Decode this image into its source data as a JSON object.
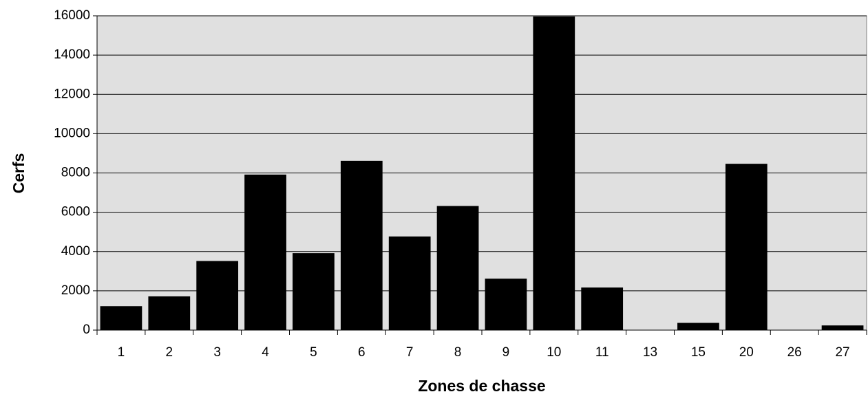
{
  "colors": {
    "plot_background": "#e0e0e0",
    "bar_fill": "#000000",
    "gridline": "#000000",
    "page_background": "#ffffff"
  },
  "chart_data": {
    "type": "bar",
    "title": "",
    "xlabel": "Zones de chasse",
    "ylabel": "Cerfs",
    "categories": [
      "1",
      "2",
      "3",
      "4",
      "5",
      "6",
      "7",
      "8",
      "9",
      "10",
      "11",
      "13",
      "15",
      "20",
      "26",
      "27"
    ],
    "values": [
      1200,
      1700,
      3500,
      7900,
      3900,
      8600,
      4750,
      6300,
      2600,
      15950,
      2150,
      0,
      350,
      8450,
      0,
      220
    ],
    "ylim": [
      0,
      16000
    ],
    "yticks": [
      "0",
      "2000",
      "4000",
      "6000",
      "8000",
      "10000",
      "12000",
      "14000",
      "16000"
    ],
    "grid": true,
    "legend": "none"
  }
}
